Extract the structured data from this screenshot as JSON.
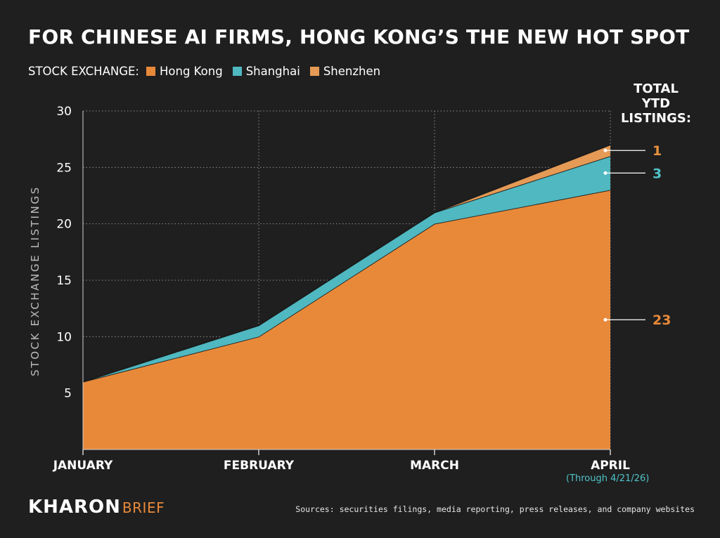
{
  "title": "FOR CHINESE AI FIRMS, HONG KONG’S THE NEW HOT SPOT",
  "legend": {
    "title": "STOCK EXCHANGE:",
    "items": [
      {
        "label": "Hong Kong",
        "color": "#e8893a"
      },
      {
        "label": "Shanghai",
        "color": "#4fb8c0"
      },
      {
        "label": "Shenzhen",
        "color": "#e59a55"
      }
    ]
  },
  "totals": {
    "header": [
      "TOTAL",
      "YTD",
      "LISTINGS:"
    ],
    "items": [
      {
        "exchange": "Shenzhen",
        "value": "1",
        "color": "#e8943f"
      },
      {
        "exchange": "Shanghai",
        "value": "3",
        "color": "#4fc3c9"
      },
      {
        "exchange": "Hong Kong",
        "value": "23",
        "color": "#e8893a"
      }
    ]
  },
  "chart_data": {
    "type": "area",
    "stacked": true,
    "ylabel": "STOCK EXCHANGE LISTINGS",
    "ylim": [
      0,
      30
    ],
    "yticks": [
      5,
      10,
      15,
      20,
      25,
      30
    ],
    "x": [
      "JANUARY",
      "FEBRUARY",
      "MARCH",
      "APRIL"
    ],
    "series": [
      {
        "name": "Hong Kong",
        "values": [
          6,
          10,
          20,
          23
        ]
      },
      {
        "name": "Shanghai",
        "values": [
          0,
          1,
          1,
          3
        ]
      },
      {
        "name": "Shenzhen",
        "values": [
          0,
          0,
          0,
          1
        ]
      }
    ],
    "x_note": "(Through 4/21/26)",
    "grid": true
  },
  "footer": {
    "logo_main": "KHARON",
    "logo_sub": "BRIEF",
    "sources": "Sources: securities filings, media reporting, press releases, and company websites"
  },
  "colors": {
    "background": "#1f1f1f",
    "hong_kong": "#e8893a",
    "shanghai": "#4fb8c0",
    "shenzhen": "#e59a55",
    "grid": "#9a9a9a"
  }
}
